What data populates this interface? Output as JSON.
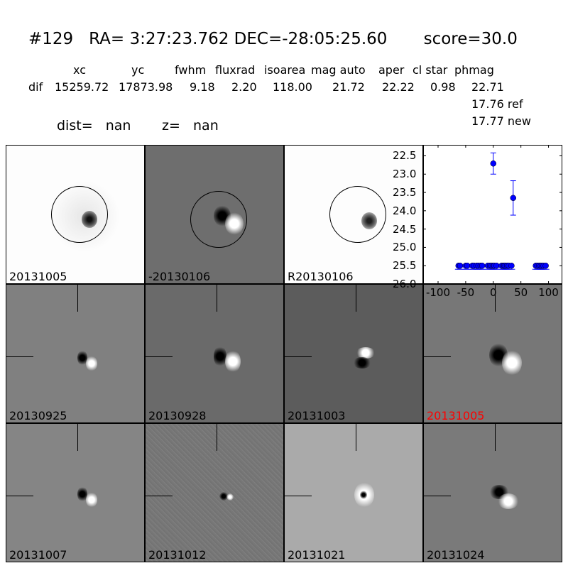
{
  "header": {
    "title": "#129   RA= 3:27:23.762 DEC=-28:05:25.60       score=30.0",
    "columns": [
      "xc",
      "yc",
      "fwhm",
      "fluxrad",
      "isoarea",
      "mag auto",
      "aper",
      "cl star",
      "phmag"
    ],
    "row_label": "dif",
    "values": [
      "15259.72",
      "17873.98",
      "9.18",
      "2.20",
      "118.00",
      "21.72",
      "22.22",
      "0.98",
      "22.71"
    ],
    "ref": "17.76 ref",
    "new": "17.77 new",
    "dist": "dist=   nan",
    "z": "z=   nan"
  },
  "panels": [
    {
      "label": "20131005",
      "color": "#000000"
    },
    {
      "label": "-20130106",
      "color": "#000000"
    },
    {
      "label": "R20130106",
      "color": "#000000"
    },
    {
      "label": "20130925",
      "color": "#000000"
    },
    {
      "label": "20130928",
      "color": "#000000"
    },
    {
      "label": "20131003",
      "color": "#000000"
    },
    {
      "label": "20131005",
      "color": "#ff0000"
    },
    {
      "label": "20131007",
      "color": "#000000"
    },
    {
      "label": "20131012",
      "color": "#000000"
    },
    {
      "label": "20131021",
      "color": "#000000"
    },
    {
      "label": "20131024",
      "color": "#000000"
    }
  ],
  "chart_data": {
    "type": "scatter",
    "color": "#0000ff",
    "xlim": [
      -127,
      125
    ],
    "ylim": [
      26.0,
      22.2
    ],
    "y_inverted": true,
    "xticks": [
      "-100",
      "-50",
      "0",
      "50",
      "100"
    ],
    "xtick_values": [
      -100,
      -50,
      0,
      50,
      100
    ],
    "yticks": [
      "22.5",
      "23.0",
      "23.5",
      "24.0",
      "24.5",
      "25.0",
      "25.5",
      "26.0"
    ],
    "ytick_values": [
      22.5,
      23.0,
      23.5,
      24.0,
      24.5,
      25.0,
      25.5,
      26.0
    ],
    "points_with_error": [
      {
        "x": 0,
        "y": 22.71,
        "err": 0.29
      },
      {
        "x": 36,
        "y": 23.65,
        "err": 0.47
      }
    ],
    "upper_limits": {
      "y": 25.5,
      "x": [
        -63,
        -60,
        -50,
        -47,
        -38,
        -35,
        -30,
        -27,
        -23,
        -20,
        -10,
        -6,
        -3,
        0,
        2,
        6,
        15,
        18,
        20,
        22,
        25,
        28,
        33,
        77,
        80,
        83,
        86,
        88,
        91,
        95
      ]
    }
  }
}
